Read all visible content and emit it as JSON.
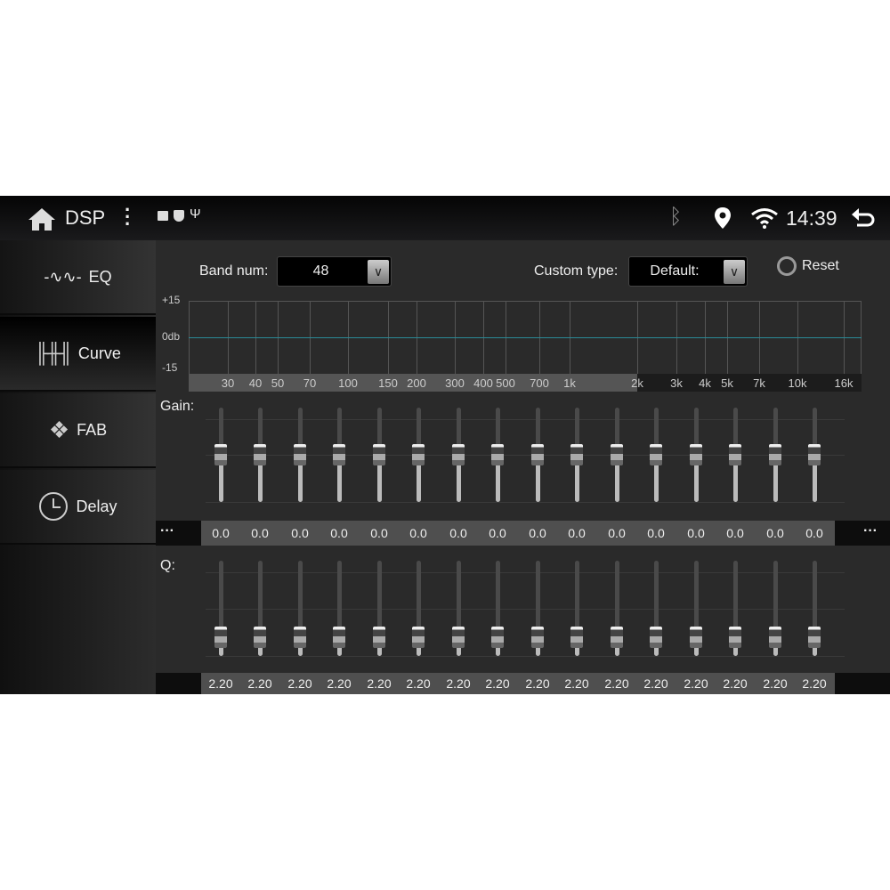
{
  "status_bar": {
    "title": "DSP",
    "time": "14:39",
    "icons": [
      "home-icon",
      "more-vert-icon",
      "image-icon",
      "shield-play-icon",
      "usb-icon",
      "bluetooth-icon",
      "location-icon",
      "wifi-icon",
      "back-icon"
    ]
  },
  "sidebar": {
    "items": [
      {
        "label": "EQ",
        "icon": "waveform-icon"
      },
      {
        "label": "Curve",
        "icon": "sliders-icon",
        "selected": true
      },
      {
        "label": "FAB",
        "icon": "fader-balance-icon"
      },
      {
        "label": "Delay",
        "icon": "clock-icon"
      }
    ]
  },
  "controls": {
    "band_num_label": "Band num:",
    "band_num_value": "48",
    "custom_type_label": "Custom type:",
    "custom_type_value": "Default:",
    "reset_label": "Reset"
  },
  "graph": {
    "y_ticks": [
      "+15",
      "0db",
      "-15"
    ],
    "x_ticks": [
      "30",
      "40",
      "50",
      "70",
      "100",
      "150",
      "200",
      "300",
      "400",
      "500",
      "700",
      "1k",
      "2k",
      "3k",
      "4k",
      "5k",
      "7k",
      "10k",
      "16k"
    ],
    "curve_db": 0,
    "line_color": "#2a8a96"
  },
  "gain": {
    "label": "Gain:",
    "more": "···",
    "values": [
      "0.0",
      "0.0",
      "0.0",
      "0.0",
      "0.0",
      "0.0",
      "0.0",
      "0.0",
      "0.0",
      "0.0",
      "0.0",
      "0.0",
      "0.0",
      "0.0",
      "0.0",
      "0.0"
    ],
    "range": [
      -15,
      15
    ]
  },
  "q": {
    "label": "Q:",
    "values": [
      "2.20",
      "2.20",
      "2.20",
      "2.20",
      "2.20",
      "2.20",
      "2.20",
      "2.20",
      "2.20",
      "2.20",
      "2.20",
      "2.20",
      "2.20",
      "2.20",
      "2.20",
      "2.20"
    ],
    "level": 0.2
  }
}
